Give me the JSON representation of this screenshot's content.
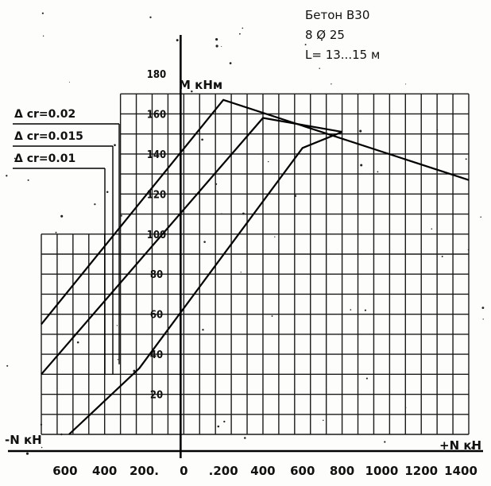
{
  "chart_data": {
    "type": "line",
    "info_lines": [
      "Бетон В30",
      "8 Ø 25",
      "L= 13...15 м"
    ],
    "xlabel_neg": "-N кН",
    "xlabel_pos": "+N кН",
    "ylabel": "M кНм",
    "x_ticks": [
      {
        "value": -600,
        "label": "600"
      },
      {
        "value": -400,
        "label": "400"
      },
      {
        "value": -200,
        "label": "200."
      },
      {
        "value": 0,
        "label": "0"
      },
      {
        "value": 200,
        "label": ".200"
      },
      {
        "value": 400,
        "label": "400"
      },
      {
        "value": 600,
        "label": "600"
      },
      {
        "value": 800,
        "label": "800"
      },
      {
        "value": 1000,
        "label": "1000"
      },
      {
        "value": 1200,
        "label": "1200"
      },
      {
        "value": 1400,
        "label": "1400"
      }
    ],
    "y_ticks": [
      {
        "value": 20,
        "label": "20"
      },
      {
        "value": 40,
        "label": "40"
      },
      {
        "value": 60,
        "label": "60"
      },
      {
        "value": 80,
        "label": "80"
      },
      {
        "value": 100,
        "label": "100"
      },
      {
        "value": 120,
        "label": "120"
      },
      {
        "value": 140,
        "label": "140"
      },
      {
        "value": 160,
        "label": "160"
      },
      {
        "value": 180,
        "label": "180"
      }
    ],
    "xlim": [
      -720,
      1440
    ],
    "ylim": [
      0,
      180
    ],
    "grid": true,
    "series": [
      {
        "name": "Δ cr=0.02",
        "x": [
          -720,
          200,
          1440
        ],
        "y": [
          55,
          167,
          127
        ]
      },
      {
        "name": "Δ cr=0.015",
        "x": [
          -720,
          400,
          800
        ],
        "y": [
          30,
          158,
          151
        ]
      },
      {
        "name": "Δ cr=0.01",
        "x": [
          -580,
          -225,
          600,
          800
        ],
        "y": [
          0,
          33,
          143,
          151
        ]
      }
    ],
    "legend_position": "left"
  }
}
